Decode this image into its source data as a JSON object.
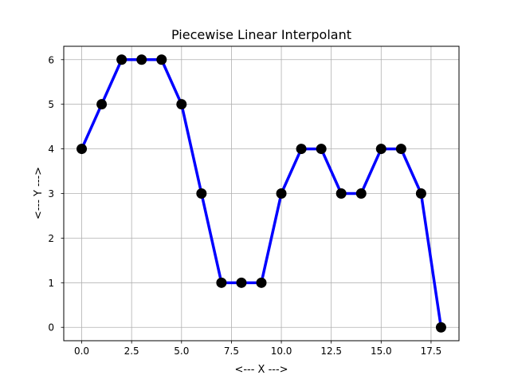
{
  "chart_data": {
    "type": "line",
    "title": "Piecewise Linear Interpolant",
    "xlabel": "<--- X --->",
    "ylabel": "<--- Y --->",
    "xlim": [
      -0.9,
      18.9
    ],
    "ylim": [
      -0.3,
      6.3
    ],
    "xticks": [
      0,
      2.5,
      5,
      7.5,
      10,
      12.5,
      15,
      17.5
    ],
    "xtick_labels": [
      "0.0",
      "2.5",
      "5.0",
      "7.5",
      "10.0",
      "12.5",
      "15.0",
      "17.5"
    ],
    "yticks": [
      0,
      1,
      2,
      3,
      4,
      5,
      6
    ],
    "ytick_labels": [
      "0",
      "1",
      "2",
      "3",
      "4",
      "5",
      "6"
    ],
    "grid": true,
    "series": [
      {
        "line_color": "#0000ff",
        "marker_color": "#000000",
        "x": [
          0,
          1,
          2,
          3,
          4,
          5,
          6,
          7,
          8,
          9,
          10,
          11,
          12,
          13,
          14,
          15,
          16,
          17,
          18
        ],
        "y": [
          4,
          5,
          6,
          6,
          6,
          5,
          3,
          1,
          1,
          1,
          3,
          4,
          4,
          3,
          3,
          4,
          4,
          3,
          0
        ]
      }
    ]
  }
}
